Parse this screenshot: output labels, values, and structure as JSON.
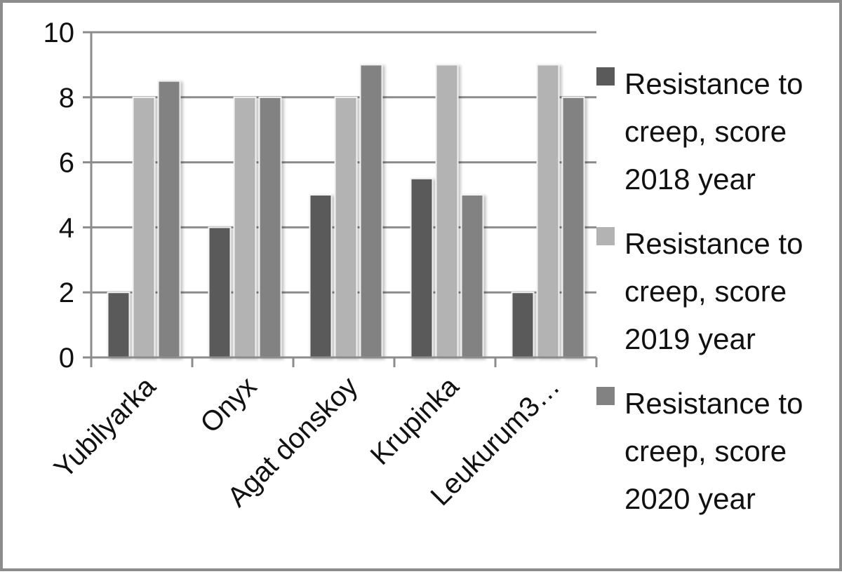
{
  "chart_data": {
    "type": "bar",
    "title": "",
    "xlabel": "",
    "ylabel": "",
    "categories": [
      "Yubilyarka",
      "Onyx",
      "Agat donskoy",
      "Krupinka",
      "Leukurum3…"
    ],
    "series": [
      {
        "name": "Resistance to creep, score 2018 year",
        "legend_lines": [
          "Resistance to",
          "creep, score",
          "2018 year"
        ],
        "color": "#5a5a5a",
        "values": [
          2,
          4,
          5,
          5.5,
          2
        ]
      },
      {
        "name": "Resistance to creep, score 2019 year",
        "legend_lines": [
          "Resistance to",
          "creep, score",
          "2019 year"
        ],
        "color": "#b3b3b3",
        "values": [
          8,
          8,
          8,
          9,
          9
        ]
      },
      {
        "name": "Resistance to creep, score 2020 year",
        "legend_lines": [
          "Resistance to",
          "creep, score",
          "2020 year"
        ],
        "color": "#828282",
        "values": [
          8.5,
          8,
          9,
          5,
          8
        ]
      }
    ],
    "ylim": [
      0,
      10
    ],
    "yticks": [
      0,
      2,
      4,
      6,
      8,
      10
    ],
    "grid": true,
    "legend_position": "right"
  }
}
